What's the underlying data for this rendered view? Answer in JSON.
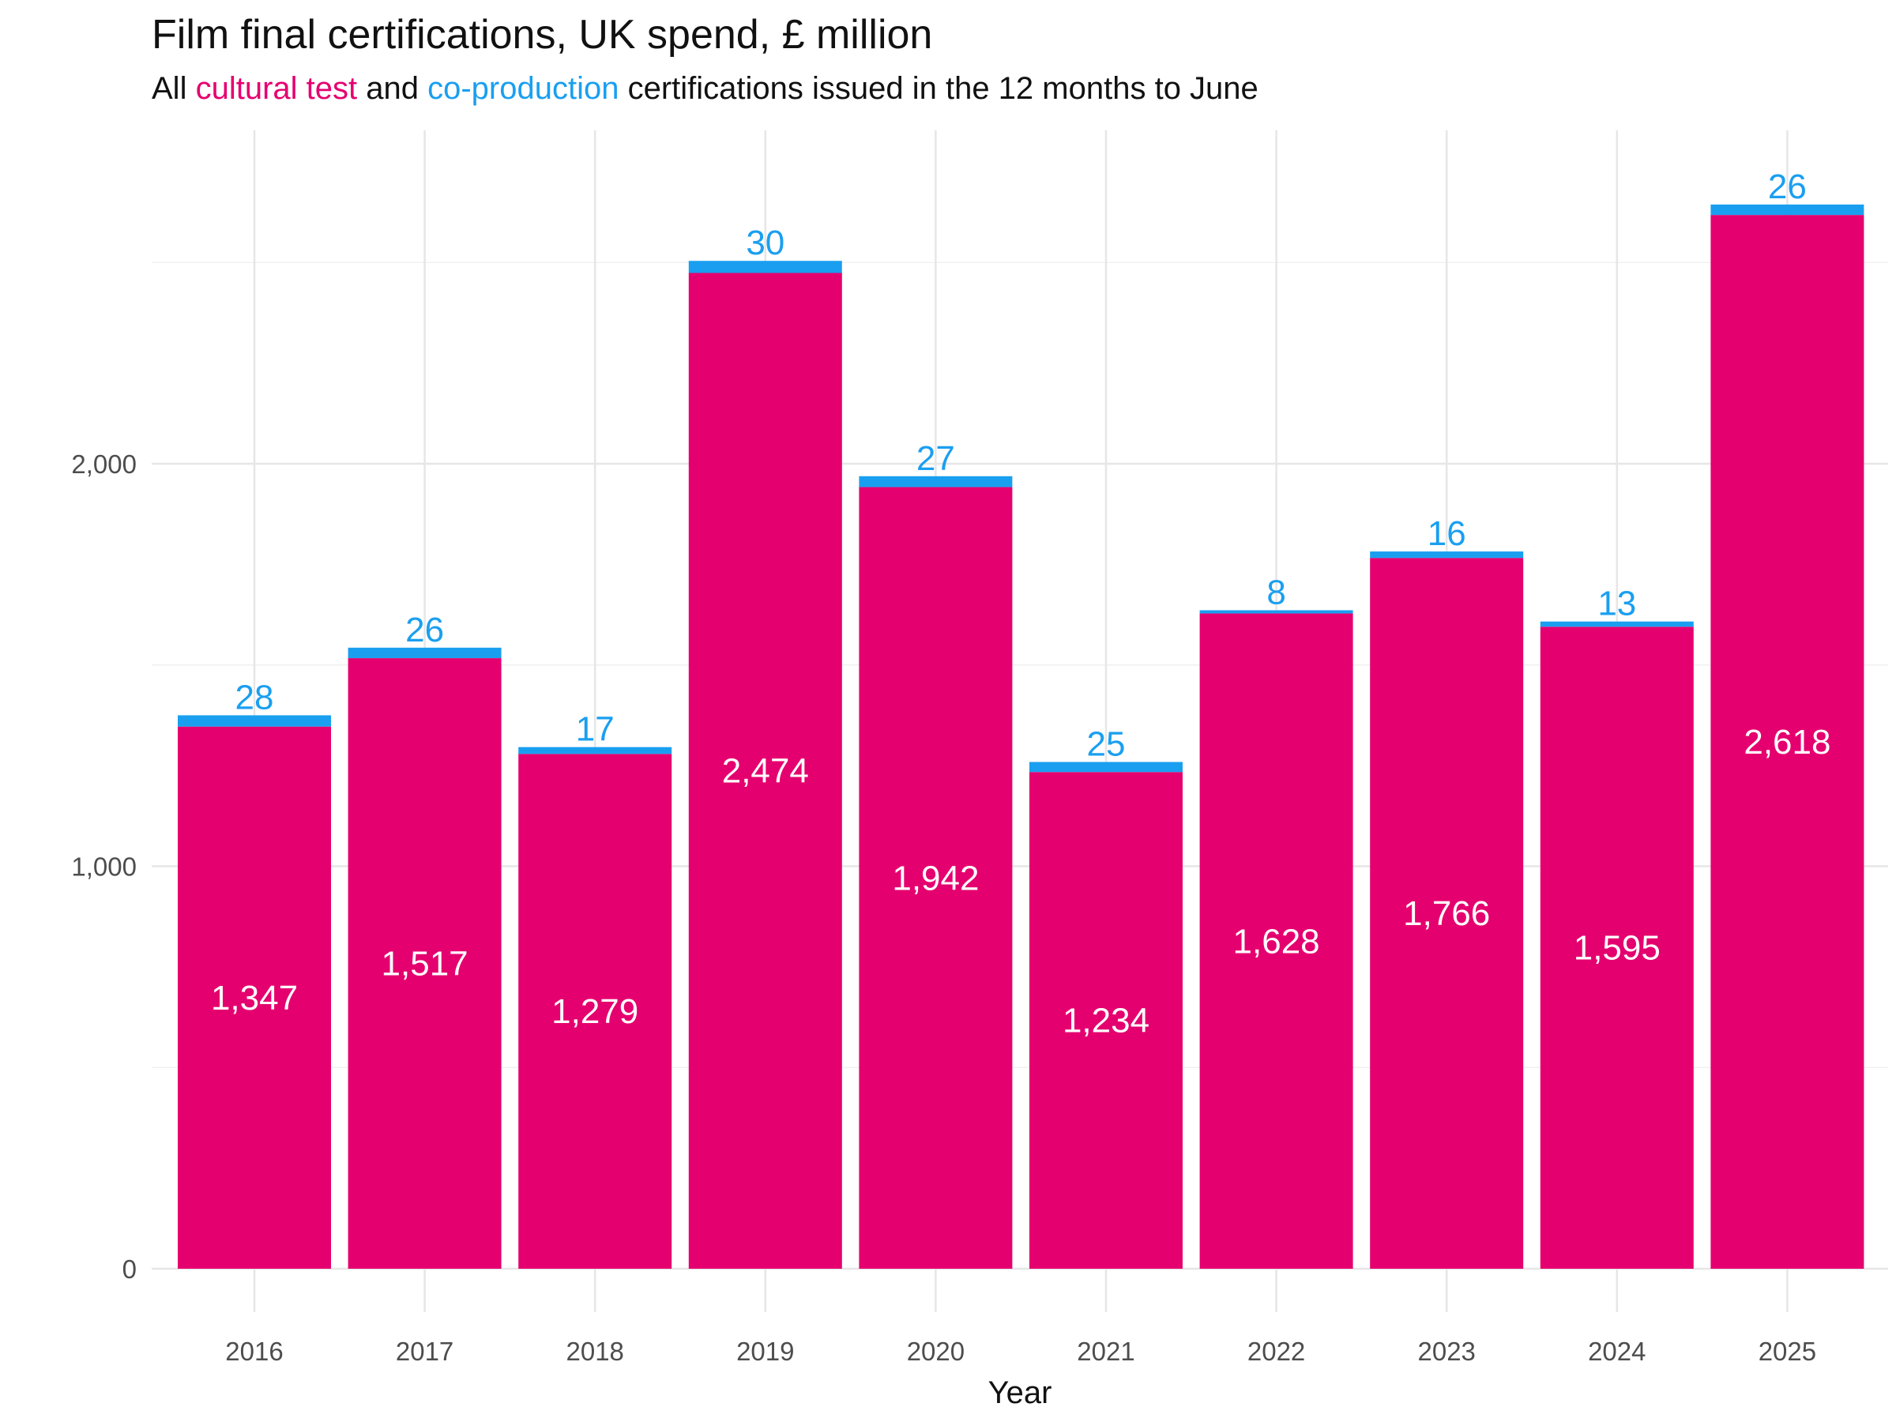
{
  "title": "Film final certifications, UK spend, £ million",
  "subtitle": {
    "prefix": "All ",
    "cultural": "cultural test",
    "middle": " and ",
    "coproduction": "co-production",
    "suffix": " certifications issued in the 12 months to June"
  },
  "colors": {
    "cultural_test": "#e5006f",
    "co_production": "#1a9ff0"
  },
  "chart_data": {
    "type": "bar",
    "stacked": true,
    "categories": [
      "2016",
      "2017",
      "2018",
      "2019",
      "2020",
      "2021",
      "2022",
      "2023",
      "2024",
      "2025"
    ],
    "series": [
      {
        "name": "cultural test",
        "values": [
          1347,
          1517,
          1279,
          2474,
          1942,
          1234,
          1628,
          1766,
          1595,
          2618
        ]
      },
      {
        "name": "co-production",
        "values": [
          28,
          26,
          17,
          30,
          27,
          25,
          8,
          16,
          13,
          26
        ]
      }
    ],
    "xlabel": "Year",
    "ylabel": "",
    "ylim": [
      0,
      2800
    ],
    "yticks": [
      0,
      1000,
      2000
    ],
    "yticklabels": [
      "0",
      "1,000",
      "2,000"
    ],
    "grid": true
  }
}
